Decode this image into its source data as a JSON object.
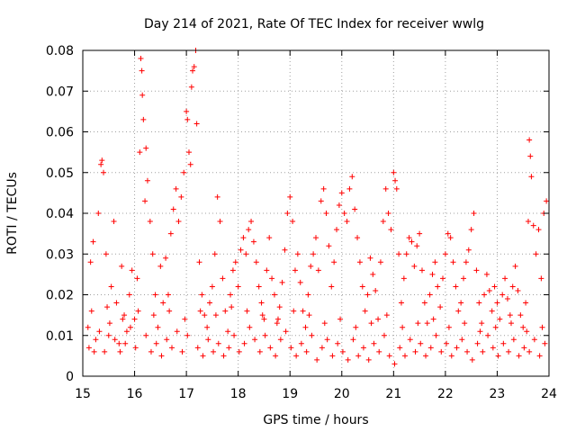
{
  "chart_data": {
    "type": "scatter",
    "title": "Day 214 of 2021, Rate Of TEC Index for receiver wwlg",
    "xlabel": "GPS time / hours",
    "ylabel": "ROTI / TECUs",
    "xlim": [
      15,
      24
    ],
    "ylim": [
      0,
      0.08
    ],
    "xticks": [
      15,
      16,
      17,
      18,
      19,
      20,
      21,
      22,
      23,
      24
    ],
    "xtick_labels": [
      "15",
      "16",
      "17",
      "18",
      "19",
      "20",
      "21",
      "22",
      "23",
      "24"
    ],
    "yticks": [
      0,
      0.01,
      0.02,
      0.03,
      0.04,
      0.05,
      0.06,
      0.07,
      0.08
    ],
    "ytick_labels": [
      "0",
      "0.01",
      "0.02",
      "0.03",
      "0.04",
      "0.05",
      "0.06",
      "0.07",
      "0.08"
    ],
    "grid": true,
    "marker": "+",
    "series": [
      {
        "name": "ROTI",
        "color": "#ff0000",
        "points": [
          [
            15.1,
            0.012
          ],
          [
            15.15,
            0.028
          ],
          [
            15.2,
            0.033
          ],
          [
            15.25,
            0.009
          ],
          [
            15.3,
            0.04
          ],
          [
            15.35,
            0.052
          ],
          [
            15.37,
            0.053
          ],
          [
            15.4,
            0.05
          ],
          [
            15.45,
            0.03
          ],
          [
            15.5,
            0.01
          ],
          [
            15.55,
            0.022
          ],
          [
            15.6,
            0.038
          ],
          [
            15.65,
            0.018
          ],
          [
            15.7,
            0.008
          ],
          [
            15.75,
            0.027
          ],
          [
            15.8,
            0.015
          ],
          [
            15.85,
            0.011
          ],
          [
            15.9,
            0.02
          ],
          [
            15.95,
            0.026
          ],
          [
            16.0,
            0.014
          ],
          [
            16.05,
            0.024
          ],
          [
            16.1,
            0.055
          ],
          [
            16.12,
            0.078
          ],
          [
            16.14,
            0.075
          ],
          [
            16.15,
            0.069
          ],
          [
            16.17,
            0.063
          ],
          [
            16.2,
            0.043
          ],
          [
            16.22,
            0.056
          ],
          [
            16.25,
            0.048
          ],
          [
            16.3,
            0.038
          ],
          [
            16.35,
            0.03
          ],
          [
            16.4,
            0.02
          ],
          [
            16.45,
            0.012
          ],
          [
            16.5,
            0.027
          ],
          [
            16.55,
            0.018
          ],
          [
            16.6,
            0.029
          ],
          [
            16.65,
            0.02
          ],
          [
            16.7,
            0.035
          ],
          [
            16.75,
            0.041
          ],
          [
            16.8,
            0.046
          ],
          [
            16.85,
            0.038
          ],
          [
            16.9,
            0.044
          ],
          [
            16.95,
            0.05
          ],
          [
            17.0,
            0.065
          ],
          [
            17.02,
            0.063
          ],
          [
            17.05,
            0.055
          ],
          [
            17.08,
            0.052
          ],
          [
            17.1,
            0.071
          ],
          [
            17.12,
            0.075
          ],
          [
            17.15,
            0.076
          ],
          [
            17.18,
            0.08
          ],
          [
            17.2,
            0.062
          ],
          [
            17.25,
            0.028
          ],
          [
            17.3,
            0.02
          ],
          [
            17.35,
            0.015
          ],
          [
            17.4,
            0.012
          ],
          [
            17.45,
            0.018
          ],
          [
            17.5,
            0.022
          ],
          [
            17.55,
            0.03
          ],
          [
            17.6,
            0.044
          ],
          [
            17.65,
            0.038
          ],
          [
            17.7,
            0.024
          ],
          [
            17.75,
            0.016
          ],
          [
            17.8,
            0.011
          ],
          [
            17.85,
            0.02
          ],
          [
            17.9,
            0.026
          ],
          [
            17.95,
            0.028
          ],
          [
            18.0,
            0.022
          ],
          [
            18.05,
            0.031
          ],
          [
            18.1,
            0.034
          ],
          [
            18.15,
            0.03
          ],
          [
            18.2,
            0.036
          ],
          [
            18.25,
            0.038
          ],
          [
            18.3,
            0.033
          ],
          [
            18.35,
            0.028
          ],
          [
            18.4,
            0.022
          ],
          [
            18.45,
            0.018
          ],
          [
            18.5,
            0.014
          ],
          [
            18.55,
            0.026
          ],
          [
            18.6,
            0.034
          ],
          [
            18.65,
            0.024
          ],
          [
            18.7,
            0.02
          ],
          [
            18.75,
            0.013
          ],
          [
            18.8,
            0.017
          ],
          [
            18.85,
            0.023
          ],
          [
            18.9,
            0.031
          ],
          [
            18.95,
            0.04
          ],
          [
            19.0,
            0.044
          ],
          [
            19.05,
            0.038
          ],
          [
            19.1,
            0.026
          ],
          [
            19.15,
            0.03
          ],
          [
            19.2,
            0.023
          ],
          [
            19.25,
            0.016
          ],
          [
            19.3,
            0.012
          ],
          [
            19.35,
            0.02
          ],
          [
            19.4,
            0.027
          ],
          [
            19.45,
            0.03
          ],
          [
            19.5,
            0.034
          ],
          [
            19.55,
            0.026
          ],
          [
            19.6,
            0.043
          ],
          [
            19.65,
            0.046
          ],
          [
            19.7,
            0.04
          ],
          [
            19.75,
            0.032
          ],
          [
            19.8,
            0.022
          ],
          [
            19.85,
            0.028
          ],
          [
            19.9,
            0.036
          ],
          [
            19.95,
            0.042
          ],
          [
            20.0,
            0.045
          ],
          [
            20.05,
            0.04
          ],
          [
            20.1,
            0.038
          ],
          [
            20.15,
            0.046
          ],
          [
            20.2,
            0.049
          ],
          [
            20.25,
            0.041
          ],
          [
            20.3,
            0.034
          ],
          [
            20.35,
            0.028
          ],
          [
            20.4,
            0.022
          ],
          [
            20.45,
            0.016
          ],
          [
            20.5,
            0.02
          ],
          [
            20.55,
            0.029
          ],
          [
            20.6,
            0.025
          ],
          [
            20.65,
            0.021
          ],
          [
            20.7,
            0.014
          ],
          [
            20.75,
            0.028
          ],
          [
            20.8,
            0.038
          ],
          [
            20.85,
            0.046
          ],
          [
            20.9,
            0.04
          ],
          [
            20.95,
            0.036
          ],
          [
            21.0,
            0.05
          ],
          [
            21.03,
            0.048
          ],
          [
            21.06,
            0.046
          ],
          [
            21.1,
            0.03
          ],
          [
            21.15,
            0.018
          ],
          [
            21.2,
            0.024
          ],
          [
            21.25,
            0.03
          ],
          [
            21.3,
            0.034
          ],
          [
            21.35,
            0.033
          ],
          [
            21.4,
            0.027
          ],
          [
            21.45,
            0.032
          ],
          [
            21.5,
            0.035
          ],
          [
            21.55,
            0.026
          ],
          [
            21.6,
            0.018
          ],
          [
            21.65,
            0.013
          ],
          [
            21.7,
            0.02
          ],
          [
            21.75,
            0.025
          ],
          [
            21.8,
            0.028
          ],
          [
            21.85,
            0.022
          ],
          [
            21.9,
            0.017
          ],
          [
            21.95,
            0.024
          ],
          [
            22.0,
            0.03
          ],
          [
            22.05,
            0.035
          ],
          [
            22.1,
            0.034
          ],
          [
            22.15,
            0.028
          ],
          [
            22.2,
            0.022
          ],
          [
            22.25,
            0.016
          ],
          [
            22.3,
            0.018
          ],
          [
            22.35,
            0.024
          ],
          [
            22.4,
            0.028
          ],
          [
            22.45,
            0.031
          ],
          [
            22.5,
            0.036
          ],
          [
            22.55,
            0.04
          ],
          [
            22.6,
            0.026
          ],
          [
            22.65,
            0.018
          ],
          [
            22.7,
            0.013
          ],
          [
            22.75,
            0.02
          ],
          [
            22.8,
            0.025
          ],
          [
            22.85,
            0.021
          ],
          [
            22.9,
            0.016
          ],
          [
            22.95,
            0.022
          ],
          [
            23.0,
            0.018
          ],
          [
            23.05,
            0.014
          ],
          [
            23.1,
            0.02
          ],
          [
            23.15,
            0.024
          ],
          [
            23.2,
            0.019
          ],
          [
            23.25,
            0.015
          ],
          [
            23.3,
            0.022
          ],
          [
            23.35,
            0.027
          ],
          [
            23.4,
            0.021
          ],
          [
            23.45,
            0.015
          ],
          [
            23.5,
            0.012
          ],
          [
            23.55,
            0.018
          ],
          [
            23.6,
            0.038
          ],
          [
            23.62,
            0.058
          ],
          [
            23.64,
            0.054
          ],
          [
            23.66,
            0.049
          ],
          [
            23.7,
            0.037
          ],
          [
            23.75,
            0.03
          ],
          [
            23.8,
            0.036
          ],
          [
            23.85,
            0.024
          ],
          [
            23.9,
            0.04
          ],
          [
            23.95,
            0.043
          ],
          [
            15.12,
            0.007
          ],
          [
            15.22,
            0.006
          ],
          [
            15.32,
            0.011
          ],
          [
            15.42,
            0.006
          ],
          [
            15.52,
            0.013
          ],
          [
            15.62,
            0.009
          ],
          [
            15.72,
            0.006
          ],
          [
            15.82,
            0.008
          ],
          [
            15.92,
            0.012
          ],
          [
            16.02,
            0.007
          ],
          [
            16.22,
            0.01
          ],
          [
            16.32,
            0.006
          ],
          [
            16.42,
            0.008
          ],
          [
            16.52,
            0.005
          ],
          [
            16.62,
            0.009
          ],
          [
            16.72,
            0.007
          ],
          [
            16.82,
            0.011
          ],
          [
            16.92,
            0.006
          ],
          [
            17.02,
            0.01
          ],
          [
            17.22,
            0.007
          ],
          [
            17.32,
            0.005
          ],
          [
            17.42,
            0.009
          ],
          [
            17.52,
            0.006
          ],
          [
            17.62,
            0.008
          ],
          [
            17.72,
            0.005
          ],
          [
            17.82,
            0.007
          ],
          [
            17.92,
            0.01
          ],
          [
            18.02,
            0.006
          ],
          [
            18.12,
            0.008
          ],
          [
            18.22,
            0.012
          ],
          [
            18.32,
            0.009
          ],
          [
            18.42,
            0.006
          ],
          [
            18.52,
            0.01
          ],
          [
            18.62,
            0.007
          ],
          [
            18.72,
            0.005
          ],
          [
            18.82,
            0.009
          ],
          [
            18.92,
            0.011
          ],
          [
            19.02,
            0.007
          ],
          [
            19.12,
            0.005
          ],
          [
            19.22,
            0.008
          ],
          [
            19.32,
            0.006
          ],
          [
            19.42,
            0.01
          ],
          [
            19.52,
            0.004
          ],
          [
            19.62,
            0.007
          ],
          [
            19.72,
            0.009
          ],
          [
            19.82,
            0.005
          ],
          [
            19.92,
            0.008
          ],
          [
            20.02,
            0.006
          ],
          [
            20.12,
            0.004
          ],
          [
            20.22,
            0.009
          ],
          [
            20.32,
            0.005
          ],
          [
            20.42,
            0.007
          ],
          [
            20.52,
            0.004
          ],
          [
            20.62,
            0.008
          ],
          [
            20.72,
            0.006
          ],
          [
            20.82,
            0.01
          ],
          [
            20.92,
            0.005
          ],
          [
            21.02,
            0.003
          ],
          [
            21.12,
            0.007
          ],
          [
            21.22,
            0.005
          ],
          [
            21.32,
            0.009
          ],
          [
            21.42,
            0.006
          ],
          [
            21.52,
            0.008
          ],
          [
            21.62,
            0.005
          ],
          [
            21.72,
            0.007
          ],
          [
            21.82,
            0.01
          ],
          [
            21.92,
            0.006
          ],
          [
            22.02,
            0.008
          ],
          [
            22.12,
            0.005
          ],
          [
            22.22,
            0.007
          ],
          [
            22.32,
            0.009
          ],
          [
            22.42,
            0.006
          ],
          [
            22.52,
            0.004
          ],
          [
            22.62,
            0.008
          ],
          [
            22.72,
            0.006
          ],
          [
            22.82,
            0.01
          ],
          [
            22.92,
            0.007
          ],
          [
            23.02,
            0.005
          ],
          [
            23.12,
            0.008
          ],
          [
            23.22,
            0.006
          ],
          [
            23.32,
            0.009
          ],
          [
            23.42,
            0.005
          ],
          [
            23.52,
            0.007
          ],
          [
            23.62,
            0.006
          ],
          [
            23.72,
            0.009
          ],
          [
            23.82,
            0.005
          ],
          [
            23.92,
            0.008
          ],
          [
            15.17,
            0.016
          ],
          [
            15.47,
            0.017
          ],
          [
            15.77,
            0.014
          ],
          [
            16.07,
            0.016
          ],
          [
            16.37,
            0.015
          ],
          [
            16.67,
            0.016
          ],
          [
            16.97,
            0.014
          ],
          [
            17.27,
            0.016
          ],
          [
            17.57,
            0.015
          ],
          [
            17.87,
            0.017
          ],
          [
            18.17,
            0.016
          ],
          [
            18.47,
            0.015
          ],
          [
            18.77,
            0.014
          ],
          [
            19.07,
            0.016
          ],
          [
            19.37,
            0.015
          ],
          [
            19.67,
            0.013
          ],
          [
            19.97,
            0.014
          ],
          [
            20.27,
            0.012
          ],
          [
            20.57,
            0.013
          ],
          [
            20.87,
            0.015
          ],
          [
            21.17,
            0.012
          ],
          [
            21.47,
            0.013
          ],
          [
            21.77,
            0.014
          ],
          [
            22.07,
            0.012
          ],
          [
            22.37,
            0.013
          ],
          [
            22.67,
            0.011
          ],
          [
            22.97,
            0.012
          ],
          [
            23.27,
            0.013
          ],
          [
            23.57,
            0.011
          ],
          [
            23.87,
            0.012
          ]
        ]
      }
    ]
  }
}
